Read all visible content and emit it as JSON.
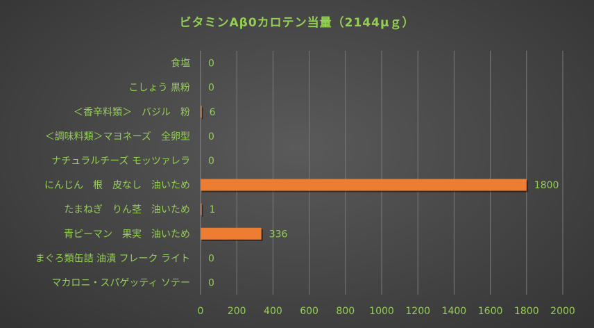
{
  "chart_data": {
    "type": "bar",
    "orientation": "horizontal",
    "title": "ビタミンAβ0カロテン当量（2144μｇ）",
    "categories": [
      "食塩",
      "こしょう 黒粉",
      "＜香辛料類＞　バジル　粉",
      "＜調味料類＞マヨネーズ　全卵型",
      "ナチュラルチーズ モッツァレラ",
      "にんじん　根　皮なし　油いため",
      "たまねぎ　りん茎　油いため",
      "青ピーマン　果実　油いため",
      "まぐろ類缶詰 油漬 フレーク ライト",
      "マカロニ・スパゲッティ ソテー"
    ],
    "values": [
      0,
      0,
      6,
      0,
      0,
      1800,
      1,
      336,
      0,
      0
    ],
    "xlim": [
      0,
      2000
    ],
    "xticks": [
      "0",
      "200",
      "400",
      "600",
      "800",
      "1000",
      "1200",
      "1400",
      "1600",
      "1800",
      "2000"
    ],
    "data_labels": [
      "0",
      "0",
      "6",
      "0",
      "0",
      "1800",
      "1",
      "336",
      "0",
      "0"
    ],
    "grid": "vertical",
    "legend": "none",
    "colors": {
      "bar": "#ed7d31",
      "text": "#92d050",
      "grid": "#7a7a7a"
    }
  }
}
